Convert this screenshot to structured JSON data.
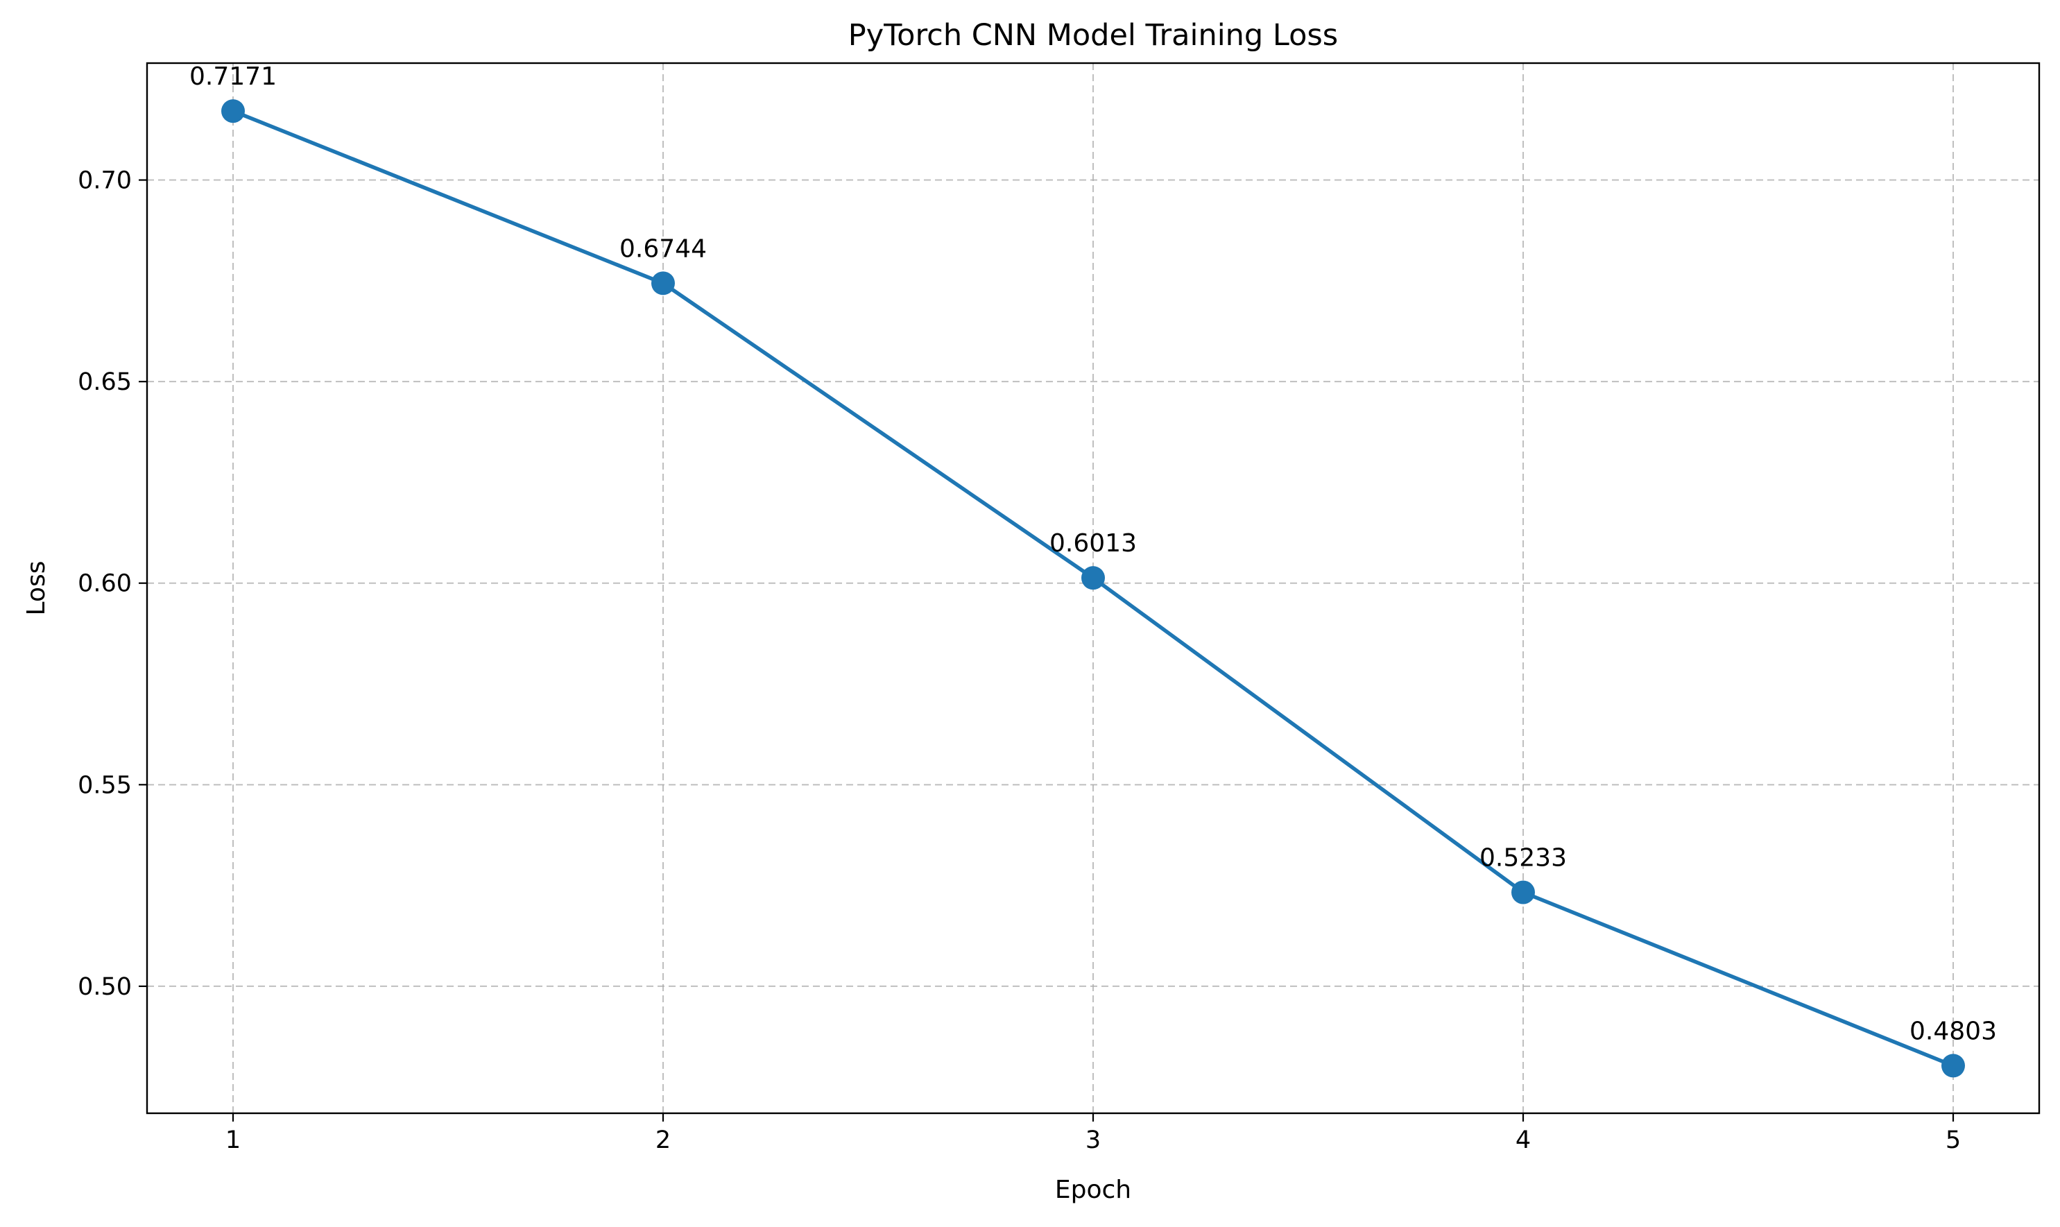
{
  "chart_data": {
    "type": "line",
    "title": "PyTorch CNN Model Training Loss",
    "xlabel": "Epoch",
    "ylabel": "Loss",
    "x": [
      1,
      2,
      3,
      4,
      5
    ],
    "x_tick_labels": [
      "1",
      "2",
      "3",
      "4",
      "5"
    ],
    "y_ticks": [
      0.5,
      0.55,
      0.6,
      0.65,
      0.7
    ],
    "y_tick_labels": [
      "0.50",
      "0.55",
      "0.60",
      "0.65",
      "0.70"
    ],
    "xlim": [
      0.8,
      5.2
    ],
    "ylim": [
      0.4685,
      0.729
    ],
    "grid": true,
    "series": [
      {
        "x": [
          1,
          2,
          3,
          4,
          5
        ],
        "values": [
          0.7171,
          0.6744,
          0.6013,
          0.5233,
          0.4803
        ],
        "data_labels": [
          "0.7171",
          "0.6744",
          "0.6013",
          "0.5233",
          "0.4803"
        ],
        "color": "#1f77b4",
        "marker": "circle"
      }
    ]
  }
}
